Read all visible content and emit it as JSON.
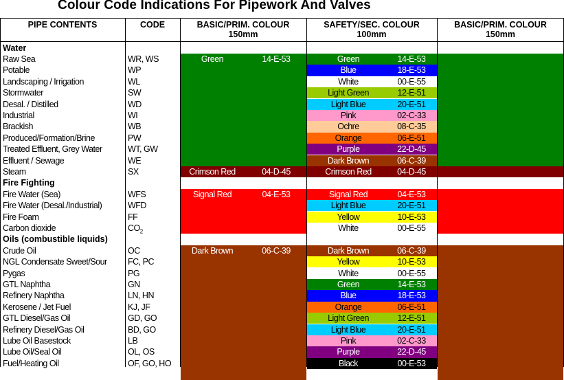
{
  "title": "Colour Code Indications For Pipework And Valves",
  "headers": {
    "pipe_contents": "PIPE CONTENTS",
    "code": "CODE",
    "basic_left_line1": "BASIC/PRIM. COLOUR",
    "basic_left_line2": "150mm",
    "safety_line1": "SAFETY/SEC. COLOUR",
    "safety_line2": "100mm",
    "basic_right_line1": "BASIC/PRIM. COLOUR",
    "basic_right_line2": "150mm"
  },
  "rows": [
    {
      "type": "section",
      "label": "Water"
    },
    {
      "type": "item",
      "content": "Raw Sea",
      "code": "WR, WS"
    },
    {
      "type": "item",
      "content": "Potable",
      "code": "WP"
    },
    {
      "type": "item",
      "content": "Landscaping / Irrigation",
      "code": "WL"
    },
    {
      "type": "item",
      "content": "Stormwater",
      "code": "SW"
    },
    {
      "type": "item",
      "content": "Desal. / Distilled",
      "code": "WD"
    },
    {
      "type": "item",
      "content": "Industrial",
      "code": "WI"
    },
    {
      "type": "item",
      "content": "Brackish",
      "code": "WB"
    },
    {
      "type": "item",
      "content": "Produced/Formation/Brine",
      "code": "PW"
    },
    {
      "type": "item",
      "content": "Treated Effluent, Grey Water",
      "code": "WT, GW"
    },
    {
      "type": "item",
      "content": "Effluent / Sewage",
      "code": "WE"
    },
    {
      "type": "item",
      "content": "Steam",
      "code": "SX"
    },
    {
      "type": "section",
      "label": "Fire Fighting"
    },
    {
      "type": "item",
      "content": "Fire Water (Sea)",
      "code": "WFS"
    },
    {
      "type": "item",
      "content": "Fire Water (Desal./Industrial)",
      "code": "WFD"
    },
    {
      "type": "item",
      "content": "Fire Foam",
      "code": "FF"
    },
    {
      "type": "item",
      "content": "Carbon dioxide",
      "code": "CO",
      "code_sub": "2"
    },
    {
      "type": "section",
      "label": "Oils  (combustible liquids)"
    },
    {
      "type": "item",
      "content": "Crude Oil",
      "code": "OC"
    },
    {
      "type": "item",
      "content": "NGL Condensate Sweet/Sour",
      "code": "FC, PC"
    },
    {
      "type": "item",
      "content": "Pygas",
      "code": "PG"
    },
    {
      "type": "item",
      "content": "GTL Naphtha",
      "code": "GN"
    },
    {
      "type": "item",
      "content": "Refinery Naphtha",
      "code": "LN, HN"
    },
    {
      "type": "item",
      "content": "Kerosene / Jet Fuel",
      "code": "KJ, JF"
    },
    {
      "type": "item",
      "content": "GTL Diesel/Gas Oil",
      "code": "GD, GO"
    },
    {
      "type": "item",
      "content": "Refinery Diesel/Gas Oil",
      "code": "BD, GO"
    },
    {
      "type": "item",
      "content": "Lube Oil Basestock",
      "code": "LB"
    },
    {
      "type": "item",
      "content": "Lube Oil/Seal Oil",
      "code": "OL, OS"
    },
    {
      "type": "item",
      "content": "Fuel/Heating Oil",
      "code": "OF, GO, HO"
    }
  ],
  "basic_bands": [
    {
      "start_row": 1,
      "end_row": 10,
      "name": "Green",
      "code": "14-E-53",
      "color": "#008000",
      "text_color": "#ffffff"
    },
    {
      "start_row": 11,
      "end_row": 11,
      "name": "Crimson Red",
      "code": "04-D-45",
      "color": "#800000",
      "text_color": "#ffffff"
    },
    {
      "start_row": 13,
      "end_row": 16,
      "name": "Signal Red",
      "code": "04-E-53",
      "color": "#ff0000",
      "text_color": "#ffffff"
    },
    {
      "start_row": 18,
      "end_row": 29,
      "name": "Dark Brown",
      "code": "06-C-39",
      "color": "#993300",
      "text_color": "#ffffff"
    }
  ],
  "safety_swatches": [
    {
      "row": 1,
      "name": "Green",
      "code": "14-E-53",
      "color": "#008000",
      "text_color": "#ffffff"
    },
    {
      "row": 2,
      "name": "Blue",
      "code": "18-E-53",
      "color": "#0000ff",
      "text_color": "#ffffff"
    },
    {
      "row": 3,
      "name": "White",
      "code": "00-E-55",
      "color": "#ffffff",
      "text_color": "#000000"
    },
    {
      "row": 4,
      "name": "Light Green",
      "code": "12-E-51",
      "color": "#99cc00",
      "text_color": "#000000"
    },
    {
      "row": 5,
      "name": "Light Blue",
      "code": "20-E-51",
      "color": "#00ccff",
      "text_color": "#000000"
    },
    {
      "row": 6,
      "name": "Pink",
      "code": "02-C-33",
      "color": "#ff99cc",
      "text_color": "#000000"
    },
    {
      "row": 7,
      "name": "Ochre",
      "code": "08-C-35",
      "color": "#ffcc99",
      "text_color": "#000000"
    },
    {
      "row": 8,
      "name": "Orange",
      "code": "06-E-51",
      "color": "#ff6600",
      "text_color": "#000000"
    },
    {
      "row": 9,
      "name": "Purple",
      "code": "22-D-45",
      "color": "#800080",
      "text_color": "#ffffff"
    },
    {
      "row": 10,
      "name": "Dark Brown",
      "code": "06-C-39",
      "color": "#993300",
      "text_color": "#ffffff"
    },
    {
      "row": 11,
      "name": "Crimson Red",
      "code": "04-D-45",
      "color": "#800000",
      "text_color": "#ffffff"
    },
    {
      "row": 13,
      "name": "Signal Red",
      "code": "04-E-53",
      "color": "#ff0000",
      "text_color": "#ffffff"
    },
    {
      "row": 14,
      "name": "Light Blue",
      "code": "20-E-51",
      "color": "#00ccff",
      "text_color": "#000000"
    },
    {
      "row": 15,
      "name": "Yellow",
      "code": "10-E-53",
      "color": "#ffff00",
      "text_color": "#000000"
    },
    {
      "row": 16,
      "name": "White",
      "code": "00-E-55",
      "color": "#ffffff",
      "text_color": "#000000"
    },
    {
      "row": 18,
      "name": "Dark Brown",
      "code": "06-C-39",
      "color": "#993300",
      "text_color": "#ffffff"
    },
    {
      "row": 19,
      "name": "Yellow",
      "code": "10-E-53",
      "color": "#ffff00",
      "text_color": "#000000"
    },
    {
      "row": 20,
      "name": "White",
      "code": "00-E-55",
      "color": "#ffffff",
      "text_color": "#000000"
    },
    {
      "row": 21,
      "name": "Green",
      "code": "14-E-53",
      "color": "#008000",
      "text_color": "#ffffff"
    },
    {
      "row": 22,
      "name": "Blue",
      "code": "18-E-53",
      "color": "#0000ff",
      "text_color": "#ffffff"
    },
    {
      "row": 23,
      "name": "Orange",
      "code": "06-E-51",
      "color": "#ff6600",
      "text_color": "#000000"
    },
    {
      "row": 24,
      "name": "Light Green",
      "code": "12-E-51",
      "color": "#99cc00",
      "text_color": "#000000"
    },
    {
      "row": 25,
      "name": "Light Blue",
      "code": "20-E-51",
      "color": "#00ccff",
      "text_color": "#000000"
    },
    {
      "row": 26,
      "name": "Pink",
      "code": "02-C-33",
      "color": "#ff99cc",
      "text_color": "#000000"
    },
    {
      "row": 27,
      "name": "Purple",
      "code": "22-D-45",
      "color": "#800080",
      "text_color": "#ffffff"
    },
    {
      "row": 28,
      "name": "Black",
      "code": "00-E-53",
      "color": "#000000",
      "text_color": "#ffffff"
    }
  ]
}
